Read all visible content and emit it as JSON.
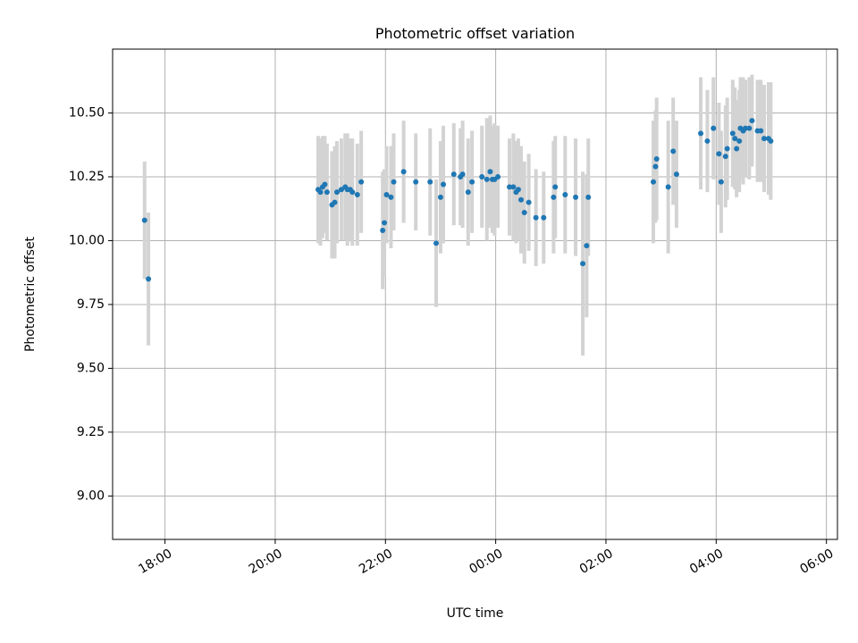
{
  "chart_data": {
    "type": "scatter",
    "title": "Photometric offset variation",
    "xlabel": "UTC time",
    "ylabel": "Photometric offset",
    "grid": true,
    "x_unit": "hours since 00:00 UTC",
    "xlim": [
      -6.95,
      6.2
    ],
    "ylim": [
      8.83,
      10.75
    ],
    "x_ticks": [
      -6,
      -4,
      -2,
      0,
      2,
      4,
      6
    ],
    "x_tick_labels": [
      "18:00",
      "20:00",
      "22:00",
      "00:00",
      "02:00",
      "04:00",
      "06:00"
    ],
    "y_ticks": [
      9.0,
      9.25,
      9.5,
      9.75,
      10.0,
      10.25,
      10.5
    ],
    "y_tick_labels": [
      "9.00",
      "9.25",
      "9.50",
      "9.75",
      "10.00",
      "10.25",
      "10.50"
    ],
    "series": [
      {
        "name": "offset",
        "marker_color": "#1f77b4",
        "errorbar_color": "#d3d3d3",
        "x": [
          -6.37,
          -6.3,
          -3.22,
          -3.18,
          -3.14,
          -3.1,
          -3.06,
          -2.97,
          -2.92,
          -2.88,
          -2.8,
          -2.73,
          -2.69,
          -2.64,
          -2.6,
          -2.51,
          -2.44,
          -2.05,
          -2.02,
          -1.98,
          -1.9,
          -1.85,
          -1.67,
          -1.45,
          -1.19,
          -1.08,
          -1.0,
          -0.95,
          -0.76,
          -0.64,
          -0.6,
          -0.5,
          -0.43,
          -0.25,
          -0.16,
          -0.1,
          -0.06,
          -0.02,
          0.04,
          0.25,
          0.32,
          0.37,
          0.41,
          0.46,
          0.52,
          0.6,
          0.73,
          0.87,
          1.05,
          1.08,
          1.26,
          1.45,
          1.58,
          1.65,
          1.68,
          2.86,
          2.9,
          2.92,
          3.13,
          3.22,
          3.28,
          3.72,
          3.84,
          3.95,
          4.05,
          4.09,
          4.17,
          4.2,
          4.3,
          4.34,
          4.37,
          4.42,
          4.44,
          4.49,
          4.53,
          4.6,
          4.65,
          4.75,
          4.81,
          4.87,
          4.95,
          4.99
        ],
        "y": [
          10.08,
          9.85,
          10.2,
          10.19,
          10.21,
          10.22,
          10.19,
          10.14,
          10.15,
          10.19,
          10.2,
          10.21,
          10.2,
          10.2,
          10.19,
          10.18,
          10.23,
          10.04,
          10.07,
          10.18,
          10.17,
          10.23,
          10.27,
          10.23,
          10.23,
          9.99,
          10.17,
          10.22,
          10.26,
          10.25,
          10.26,
          10.19,
          10.23,
          10.25,
          10.24,
          10.27,
          10.24,
          10.24,
          10.25,
          10.21,
          10.21,
          10.19,
          10.2,
          10.16,
          10.11,
          10.15,
          10.09,
          10.09,
          10.17,
          10.21,
          10.18,
          10.17,
          9.91,
          9.98,
          10.17,
          10.23,
          10.29,
          10.32,
          10.21,
          10.35,
          10.26,
          10.42,
          10.39,
          10.44,
          10.34,
          10.23,
          10.33,
          10.36,
          10.42,
          10.4,
          10.36,
          10.39,
          10.44,
          10.43,
          10.44,
          10.44,
          10.47,
          10.43,
          10.43,
          10.4,
          10.4,
          10.39
        ],
        "yerr": [
          0.23,
          0.26,
          0.21,
          0.21,
          0.2,
          0.19,
          0.19,
          0.21,
          0.22,
          0.2,
          0.2,
          0.21,
          0.22,
          0.2,
          0.21,
          0.2,
          0.2,
          0.23,
          0.21,
          0.19,
          0.2,
          0.19,
          0.2,
          0.19,
          0.21,
          0.25,
          0.22,
          0.23,
          0.2,
          0.19,
          0.21,
          0.21,
          0.2,
          0.2,
          0.24,
          0.22,
          0.21,
          0.22,
          0.2,
          0.19,
          0.21,
          0.2,
          0.2,
          0.21,
          0.2,
          0.19,
          0.19,
          0.18,
          0.22,
          0.2,
          0.23,
          0.23,
          0.36,
          0.28,
          0.23,
          0.24,
          0.22,
          0.24,
          0.26,
          0.21,
          0.21,
          0.22,
          0.2,
          0.2,
          0.2,
          0.2,
          0.2,
          0.2,
          0.21,
          0.2,
          0.19,
          0.2,
          0.2,
          0.21,
          0.19,
          0.2,
          0.18,
          0.2,
          0.2,
          0.21,
          0.22,
          0.23
        ]
      }
    ]
  }
}
